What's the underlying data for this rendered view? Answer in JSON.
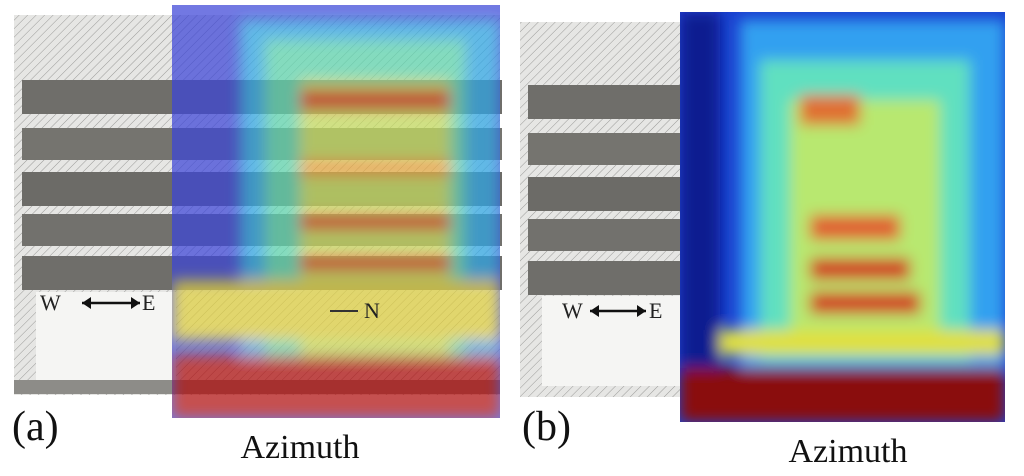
{
  "panels": [
    {
      "label": "(a)",
      "axis_label": "Azimuth",
      "annotations": [
        "W",
        "E",
        "N"
      ]
    },
    {
      "label": "(b)",
      "axis_label": "Azimuth",
      "annotations": [
        "W",
        "E"
      ]
    }
  ]
}
